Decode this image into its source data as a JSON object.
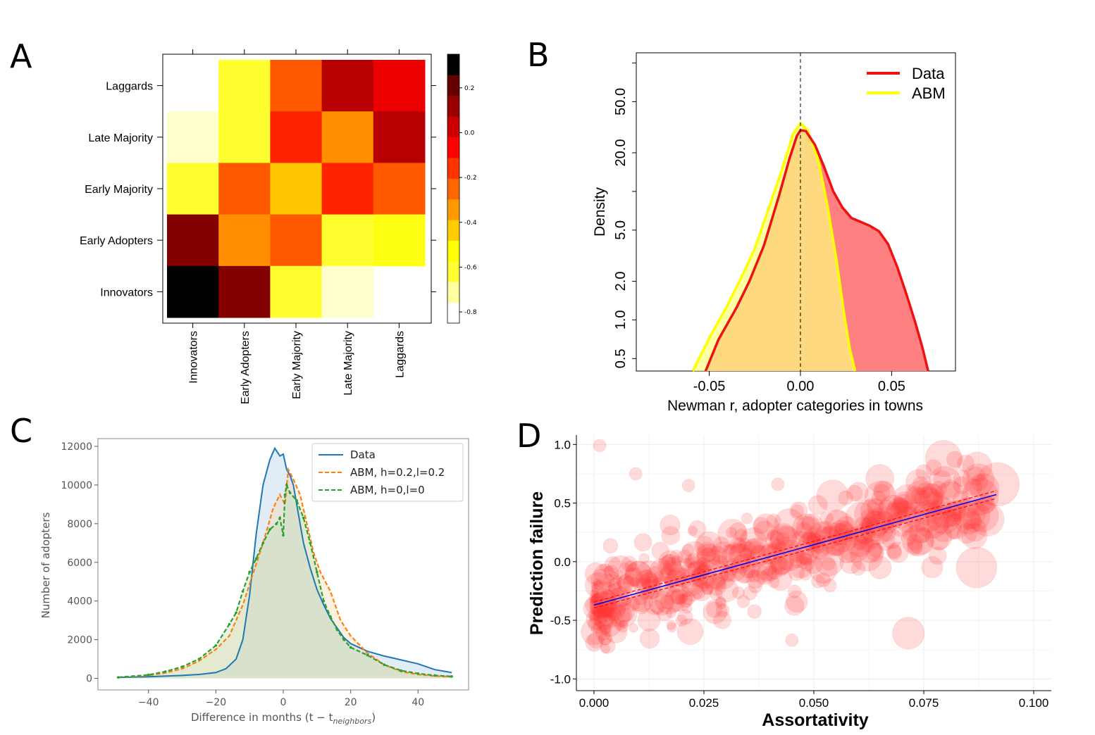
{
  "chart_data": [
    {
      "panel": "A",
      "type": "heatmap",
      "row_labels": [
        "Laggards",
        "Late Majority",
        "Early Majority",
        "Early Adopters",
        "Innovators"
      ],
      "col_labels": [
        "Innovators",
        "Early Adopters",
        "Early Majority",
        "Late Majority",
        "Laggards"
      ],
      "values": [
        [
          null,
          -0.6,
          -0.2,
          0.1,
          0.0
        ],
        [
          -0.75,
          -0.6,
          -0.1,
          -0.3,
          0.1
        ],
        [
          -0.6,
          -0.2,
          -0.4,
          -0.1,
          -0.2
        ],
        [
          0.2,
          -0.3,
          -0.2,
          -0.6,
          -0.55
        ],
        [
          0.35,
          0.2,
          -0.6,
          -0.75,
          null
        ]
      ],
      "colorbar": {
        "ticks": [
          "0.2",
          "0.0",
          "-0.2",
          "-0.4",
          "-0.6",
          "-0.8"
        ],
        "tick_values": [
          0.2,
          0.0,
          -0.2,
          -0.4,
          -0.6,
          -0.8
        ],
        "range": [
          -0.85,
          0.35
        ]
      },
      "colors": [
        "#ffffff",
        "#ffffa0",
        "#ffff33",
        "#ffff00",
        "#ffcc00",
        "#ff9900",
        "#ff6600",
        "#ff3300",
        "#ff0000",
        "#cc0000",
        "#990000",
        "#660000",
        "#000000"
      ]
    },
    {
      "panel": "B",
      "type": "area",
      "xlabel": "Newman r, adopter categories in towns",
      "ylabel": "Density",
      "xlim": [
        -0.09,
        0.085
      ],
      "ylim_log": [
        0.4,
        120
      ],
      "x_ticks": [
        "-0.05",
        "0.00",
        "0.05"
      ],
      "x_tick_values": [
        -0.05,
        0.0,
        0.05
      ],
      "y_ticks": [
        "0.5",
        "1.0",
        "2.0",
        "5.0",
        "20.0",
        "50.0"
      ],
      "y_tick_values": [
        0.5,
        1.0,
        2.0,
        5.0,
        20.0,
        50.0
      ],
      "legend": [
        "Data",
        "ABM"
      ],
      "series": [
        {
          "name": "Data",
          "color": "#ee1111",
          "fill": "#ff8080",
          "x": [
            -0.052,
            -0.045,
            -0.035,
            -0.028,
            -0.02,
            -0.012,
            -0.006,
            -0.002,
            0.0,
            0.003,
            0.008,
            0.013,
            0.018,
            0.023,
            0.028,
            0.033,
            0.038,
            0.043,
            0.048,
            0.053,
            0.058,
            0.063,
            0.067,
            0.07
          ],
          "y": [
            0.4,
            0.7,
            1.25,
            2.0,
            3.8,
            9.0,
            18.0,
            27.0,
            30.0,
            29.5,
            23.0,
            15.5,
            10.0,
            7.5,
            6.2,
            5.8,
            5.4,
            4.9,
            3.9,
            2.6,
            1.6,
            0.95,
            0.6,
            0.4
          ]
        },
        {
          "name": "ABM",
          "color": "#ffff00",
          "fill": "#ffff80",
          "x": [
            -0.059,
            -0.05,
            -0.04,
            -0.032,
            -0.025,
            -0.018,
            -0.01,
            -0.004,
            0.0,
            0.004,
            0.01,
            0.015,
            0.02,
            0.024,
            0.027,
            0.03
          ],
          "y": [
            0.4,
            0.72,
            1.3,
            2.2,
            3.6,
            7.0,
            15.0,
            28.0,
            34.0,
            30.0,
            17.0,
            7.5,
            2.8,
            1.1,
            0.6,
            0.4
          ]
        }
      ]
    },
    {
      "panel": "C",
      "type": "area",
      "xlabel": "Difference in months (t − t",
      "xlabel_sub": "neighbors",
      "xlabel_close": ")",
      "ylabel": "Number of adopters",
      "xlim": [
        -55,
        55
      ],
      "ylim": [
        -600,
        12400
      ],
      "x_ticks": [
        "−40",
        "−20",
        "0",
        "20",
        "40"
      ],
      "x_tick_values": [
        -40,
        -20,
        0,
        20,
        40
      ],
      "y_ticks": [
        "0",
        "2000",
        "4000",
        "6000",
        "8000",
        "10000",
        "12000"
      ],
      "y_tick_values": [
        0,
        2000,
        4000,
        6000,
        8000,
        10000,
        12000
      ],
      "legend": [
        "Data",
        "ABM, h=0.2,l=0.2",
        "ABM, h=0,l=0"
      ],
      "series": [
        {
          "name": "Data",
          "color": "#1f77b4",
          "x": [
            -49,
            -40,
            -30,
            -25,
            -20,
            -17,
            -14,
            -12,
            -10,
            -8,
            -6,
            -4,
            -2.5,
            -1,
            0,
            1,
            2,
            3,
            4,
            6,
            8,
            10,
            12,
            14,
            16,
            18,
            20,
            25,
            30,
            35,
            40,
            45,
            50
          ],
          "y": [
            50,
            80,
            150,
            200,
            300,
            500,
            1000,
            2000,
            4300,
            7500,
            10000,
            11300,
            11900,
            11500,
            11600,
            10800,
            10500,
            10000,
            9000,
            7000,
            5700,
            4600,
            3800,
            3100,
            2600,
            2100,
            1800,
            1400,
            1150,
            950,
            750,
            450,
            300
          ]
        },
        {
          "name": "ABM, h=0.2,l=0.2",
          "color": "#ff7f0e",
          "x": [
            -49,
            -40,
            -35,
            -30,
            -25,
            -20,
            -16,
            -12,
            -9,
            -6,
            -3,
            -1,
            0.5,
            1.5,
            3,
            5,
            7,
            9,
            11,
            14,
            17,
            20,
            25,
            30,
            35,
            40,
            45,
            50
          ],
          "y": [
            50,
            150,
            280,
            500,
            900,
            1500,
            2200,
            3800,
            5400,
            7000,
            8800,
            9500,
            9000,
            10800,
            10300,
            9500,
            8000,
            6500,
            5500,
            4500,
            3000,
            2200,
            1300,
            700,
            350,
            200,
            120,
            80
          ]
        },
        {
          "name": "ABM, h=0,l=0",
          "color": "#2ca02c",
          "x": [
            -49,
            -40,
            -35,
            -30,
            -25,
            -20,
            -16,
            -14,
            -12,
            -10,
            -8,
            -6,
            -4,
            -2,
            -1,
            0,
            0.5,
            1,
            2,
            4,
            6,
            8,
            10,
            12,
            14,
            16,
            18,
            20,
            25,
            30,
            35,
            40,
            45,
            50
          ],
          "y": [
            50,
            180,
            350,
            600,
            1000,
            1700,
            2800,
            3400,
            4500,
            5500,
            6200,
            7000,
            7700,
            8000,
            8300,
            7400,
            9500,
            10000,
            9600,
            9200,
            8300,
            7000,
            5500,
            4000,
            3200,
            2500,
            2000,
            1600,
            1200,
            700,
            400,
            250,
            150,
            100
          ]
        }
      ]
    },
    {
      "panel": "D",
      "type": "scatter",
      "xlabel": "Assortativity",
      "ylabel": "Prediction failure",
      "xlim": [
        -0.004,
        0.104
      ],
      "ylim": [
        -1.1,
        1.08
      ],
      "x_ticks": [
        "0.000",
        "0.025",
        "0.050",
        "0.075",
        "0.100"
      ],
      "x_tick_values": [
        0.0,
        0.025,
        0.05,
        0.075,
        0.1
      ],
      "y_ticks": [
        "-1.0",
        "-0.5",
        "0.0",
        "0.5",
        "1.0"
      ],
      "y_tick_values": [
        -1.0,
        -0.5,
        0.0,
        0.5,
        1.0
      ],
      "fit": {
        "intercept": -0.37,
        "slope": 10.3,
        "x_range": [
          0.0,
          0.0915
        ],
        "ci_offset": 0.025,
        "color": "#0000ee",
        "ci_color": "#ee1111"
      },
      "highlighted_points": [
        {
          "x": 0.0013,
          "y": 0.99
        },
        {
          "x": 0.0918,
          "y": 0.66
        },
        {
          "x": 0.0795,
          "y": 0.88
        },
        {
          "x": 0.065,
          "y": 0.71
        },
        {
          "x": 0.068,
          "y": 0.44
        },
        {
          "x": 0.0745,
          "y": 0.55
        },
        {
          "x": 0.087,
          "y": -0.05
        },
        {
          "x": 0.045,
          "y": -0.67
        },
        {
          "x": 0.0715,
          "y": -0.61
        },
        {
          "x": 0.0095,
          "y": 0.75
        },
        {
          "x": 0.0215,
          "y": 0.65
        },
        {
          "x": 0.0418,
          "y": 0.66
        }
      ]
    }
  ]
}
